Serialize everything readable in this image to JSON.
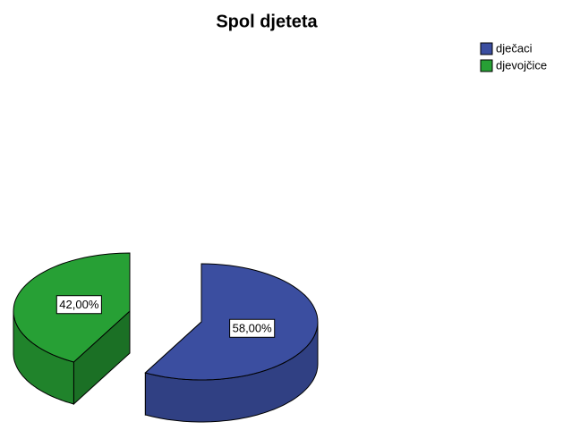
{
  "chart_data": {
    "type": "pie",
    "title": "Spol djeteta",
    "categories": [
      "dječaci",
      "djevojčice"
    ],
    "values": [
      58,
      42
    ],
    "value_labels": [
      "58,00%",
      "42,00%"
    ],
    "colors": [
      "#3b4ea0",
      "#27a035"
    ],
    "legend": "top-right"
  }
}
